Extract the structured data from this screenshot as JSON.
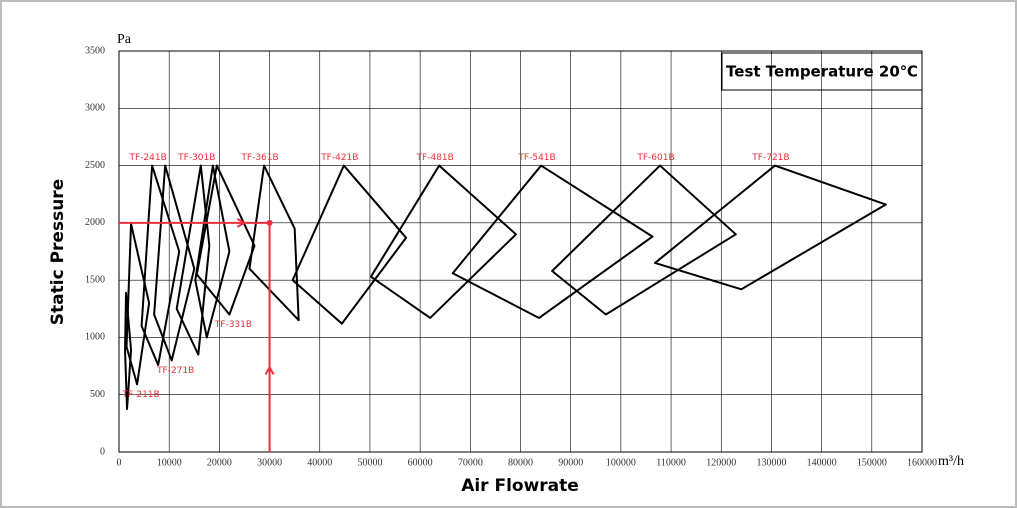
{
  "chart_data": {
    "type": "polygon",
    "x_label": "Air Flowrate",
    "y_label": "Static Pressure",
    "x_unit": "m³/h",
    "y_unit": "Pa",
    "annotation": "Test Temperature 20℃",
    "xlim": [
      0,
      160000
    ],
    "xticks": [
      0,
      10000,
      20000,
      30000,
      40000,
      50000,
      60000,
      70000,
      80000,
      90000,
      100000,
      110000,
      120000,
      130000,
      140000,
      150000,
      160000
    ],
    "ylim": [
      0,
      3500
    ],
    "yticks": [
      0,
      500,
      1000,
      1500,
      2000,
      2500,
      3000,
      3500
    ],
    "grid": true,
    "line_color": "#000000",
    "label_color": "#e8303a",
    "operating_point": {
      "x": 30000,
      "y": 2000,
      "color": "#e8303a"
    },
    "series": [
      {
        "x": [
          1400,
          2400,
          1600,
          1200
        ],
        "values": [
          1390,
          890,
          375,
          890
        ]
      },
      {
        "name": "TF-211B",
        "label_position": "bottom",
        "x": [
          2400,
          6000,
          3600,
          1500
        ],
        "values": [
          1990,
          1300,
          590,
          920
        ]
      },
      {
        "name": "TF-241B",
        "label_position": "top",
        "x": [
          6600,
          12000,
          7800,
          4500
        ],
        "values": [
          2500,
          1750,
          760,
          1100
        ]
      },
      {
        "name": "TF-271B",
        "label_position": "bottom",
        "x": [
          9200,
          15000,
          10500,
          7000
        ],
        "values": [
          2500,
          1600,
          800,
          1200
        ]
      },
      {
        "name": "TF-301B",
        "label_position": "top",
        "x": [
          16300,
          18000,
          15800,
          11500
        ],
        "values": [
          2500,
          1800,
          850,
          1250
        ]
      },
      {
        "x": [
          18700,
          22000,
          17500,
          15200
        ],
        "values": [
          2500,
          1750,
          1000,
          1500
        ]
      },
      {
        "name": "TF-331B",
        "label_position": "bottom",
        "x": [
          19500,
          27000,
          22000,
          15500
        ],
        "values": [
          2500,
          1800,
          1200,
          1550
        ]
      },
      {
        "name": "TF-361B",
        "label_position": "top",
        "x": [
          28900,
          35000,
          35800,
          26000
        ],
        "values": [
          2500,
          1950,
          1150,
          1600
        ]
      },
      {
        "name": "TF-421B",
        "label_position": "top",
        "x": [
          44800,
          57200,
          44400,
          34600
        ],
        "values": [
          2500,
          1870,
          1120,
          1500
        ]
      },
      {
        "name": "TF-481B",
        "label_position": "top",
        "x": [
          63800,
          79100,
          62000,
          50200
        ],
        "values": [
          2500,
          1900,
          1170,
          1530
        ]
      },
      {
        "name": "TF-541B",
        "label_position": "top",
        "x": [
          84100,
          106300,
          83700,
          66500
        ],
        "values": [
          2500,
          1880,
          1170,
          1560
        ]
      },
      {
        "name": "TF-601B",
        "label_position": "top",
        "x": [
          107800,
          122900,
          97000,
          86300
        ],
        "values": [
          2500,
          1900,
          1200,
          1580
        ]
      },
      {
        "name": "TF-721B",
        "label_position": "top",
        "x": [
          130700,
          152800,
          124000,
          106800
        ],
        "values": [
          2500,
          2160,
          1420,
          1650
        ]
      }
    ]
  }
}
